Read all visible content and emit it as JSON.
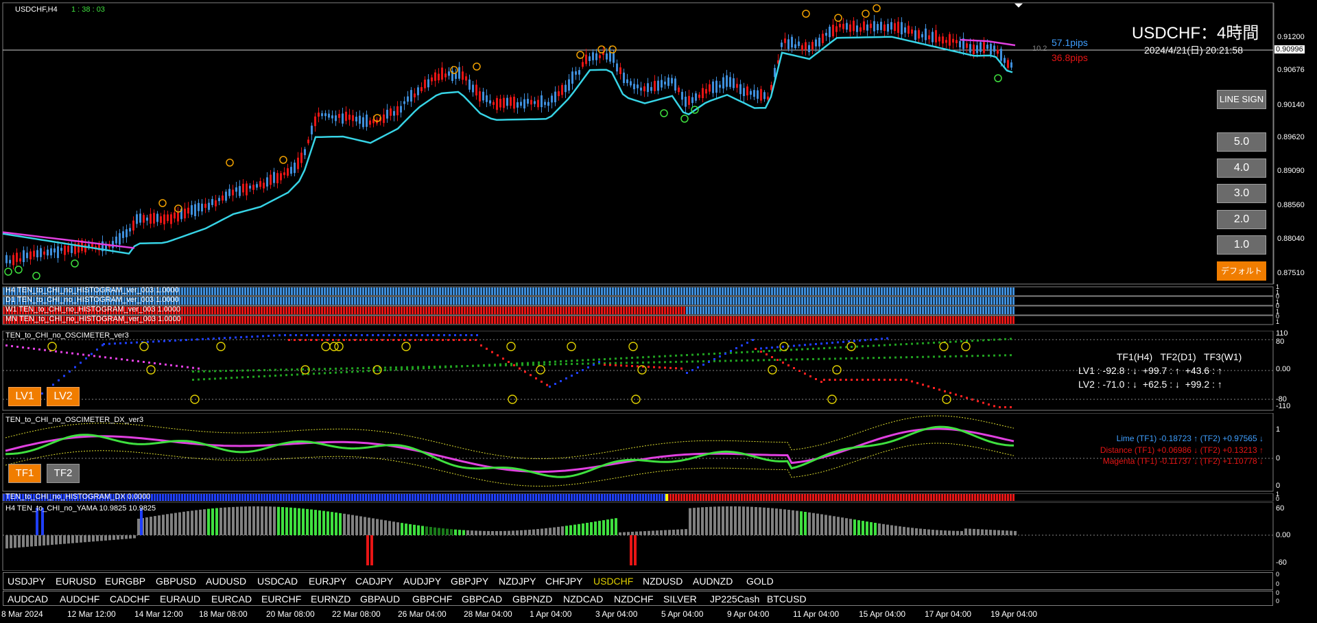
{
  "window": {
    "title": "USDCHF,H4",
    "timer": "1 : 38 : 03"
  },
  "header": {
    "symbol_title": "USDCHF：4時間",
    "datetime": "2024/4/21(日) 20:21:58",
    "pips_blue": "57.1pips",
    "pips_red": "36.8pips",
    "spread": "10.2",
    "current_price": "0.90996"
  },
  "colors": {
    "bull": "#3f8fdc",
    "bear": "#e81515",
    "ma_cyan": "#37d4e6",
    "ma_magenta": "#e040e0",
    "lime": "#3fe03f",
    "orange": "#f07d00"
  },
  "price_axis": [
    "0.91200",
    "0.90676",
    "0.90140",
    "0.89620",
    "0.89090",
    "0.88560",
    "0.88040",
    "0.87510"
  ],
  "side_buttons": {
    "line_sign": "LINE SIGN",
    "levels": [
      "5.0",
      "4.0",
      "3.0",
      "2.0",
      "1.0"
    ],
    "default": "デフォルト"
  },
  "histograms": [
    {
      "label": "H4 TEN_to_CHI_no_HISTOGRAM_ver_003 1.0000"
    },
    {
      "label": "D1 TEN_to_CHI_no_HISTOGRAM_ver_003 1.0000"
    },
    {
      "label": "W1 TEN_to_CHI_no_HISTOGRAM_ver_003 1.0000"
    },
    {
      "label": "MN TEN_to_CHI_no_HISTOGRAM_ver_003 1.0000"
    }
  ],
  "histogram_axis": [
    "1",
    "1",
    "0",
    "1",
    "0",
    "1",
    "0",
    "1"
  ],
  "oscimeter": {
    "title": "TEN_to_CHI_no_OSCIMETER_ver3",
    "axis": [
      "110",
      "80",
      "0.00",
      "-80",
      "-110"
    ],
    "lv1_button": "LV1",
    "lv2_button": "LV2",
    "table_header": "TF1(H4)   TF2(D1)   TF3(W1)",
    "lv1_row": "LV1 : -92.8 : ↓  +99.7 : ↑  +43.6 : ↑",
    "lv2_row": "LV2 : -71.0 : ↓  +62.5 : ↓  +99.2 : ↑"
  },
  "oscimeter_dx": {
    "title": "TEN_to_CHI_no_OSCIMETER_DX_ver3",
    "axis": [
      "1",
      "0",
      "0"
    ],
    "tf1_button": "TF1",
    "tf2_button": "TF2",
    "lime_row": "Lime (TF1) -0.18723 ↑ (TF2) +0.97565 ↓",
    "distance_row": "Distance (TF1) +0.06986 ↓ (TF2) +0.13213 ↑",
    "magenta_row": "Magenta (TF1) -0.11737 ↓ (TF2) +1.10778 ↓"
  },
  "histogram_dx": {
    "label": "TEN_to_CHI_no_HISTOGRAM_DX 0.0000",
    "axis": [
      "1",
      "0"
    ]
  },
  "yama": {
    "title": "H4  TEN_to_CHI_no_YAMA 10.9825 10.9825",
    "axis": [
      "60",
      "0.00",
      "-60"
    ]
  },
  "symbol_row1": {
    "items": [
      "USDJPY",
      "EURUSD",
      "EURGBP",
      "GBPUSD",
      "AUDUSD",
      "USDCAD",
      "EURJPY",
      "CADJPY",
      "AUDJPY",
      "GBPJPY",
      "NZDJPY",
      "CHFJPY",
      "USDCHF",
      "NZDUSD",
      "AUDNZD",
      "GOLD"
    ],
    "active": "USDCHF",
    "axis": [
      "0",
      "0"
    ]
  },
  "symbol_row2": {
    "items": [
      "AUDCAD",
      "AUDCHF",
      "CADCHF",
      "EURAUD",
      "EURCAD",
      "EURCHF",
      "EURNZD",
      "GBPAUD",
      "GBPCHF",
      "GBPCAD",
      "GBPNZD",
      "NZDCAD",
      "NZDCHF",
      "SILVER",
      "JP225Cash",
      "BTCUSD"
    ],
    "axis": [
      "0",
      "0"
    ]
  },
  "time_axis": [
    "8 Mar 2024",
    "12 Mar 12:00",
    "14 Mar 12:00",
    "18 Mar 08:00",
    "20 Mar 08:00",
    "22 Mar 08:00",
    "26 Mar 04:00",
    "28 Mar 04:00",
    "1 Apr 04:00",
    "3 Apr 04:00",
    "5 Apr 04:00",
    "9 Apr 04:00",
    "11 Apr 04:00",
    "15 Apr 04:00",
    "17 Apr 04:00",
    "19 Apr 04:00"
  ]
}
